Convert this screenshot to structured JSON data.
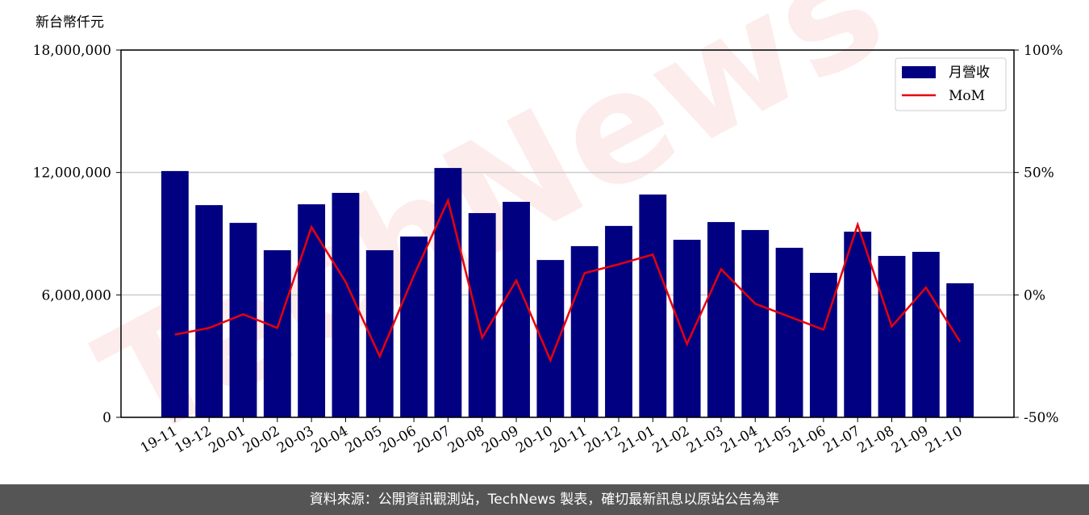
{
  "chart_data": {
    "type": "bar_line",
    "y_label": "新台幣仟元",
    "categories": [
      "19-11",
      "19-12",
      "20-01",
      "20-02",
      "20-03",
      "20-04",
      "20-05",
      "20-06",
      "20-07",
      "20-08",
      "20-09",
      "20-10",
      "20-11",
      "20-12",
      "21-01",
      "21-02",
      "21-03",
      "21-04",
      "21-05",
      "21-06",
      "21-07",
      "21-08",
      "21-09",
      "21-10"
    ],
    "series": [
      {
        "name": "月營收",
        "type": "bar",
        "color": "#000080",
        "values": [
          12070000,
          10400000,
          9530000,
          8190000,
          10440000,
          11000000,
          8190000,
          8860000,
          12220000,
          10010000,
          10560000,
          7710000,
          8390000,
          9380000,
          10920000,
          8700000,
          9570000,
          9180000,
          8310000,
          7080000,
          9100000,
          7910000,
          8110000,
          6570000
        ]
      },
      {
        "name": "MoM",
        "type": "line",
        "color": "#e8000b",
        "axis": "y2",
        "values": [
          -16.2,
          -13.5,
          -7.9,
          -13.5,
          27.7,
          5.3,
          -25.1,
          7.9,
          38.6,
          -17.5,
          5.9,
          -26.7,
          8.9,
          12.5,
          16.5,
          -20.1,
          10.5,
          -3.6,
          -8.9,
          -14.2,
          28.7,
          -12.9,
          3.0,
          -19.1
        ]
      }
    ],
    "ylim": [
      0,
      18000000
    ],
    "yticks": [
      0,
      {
        "value": 6000000,
        "label": "6,000,000"
      },
      {
        "value": 12000000,
        "label": "12,000,000"
      },
      {
        "value": 18000000,
        "label": "18,000,000"
      }
    ],
    "y2lim": [
      -50,
      100
    ],
    "y2ticks": [
      {
        "value": -50,
        "label": "-50%"
      },
      {
        "value": 0,
        "label": "0%"
      },
      {
        "value": 50,
        "label": "50%"
      },
      {
        "value": 100,
        "label": "100%"
      }
    ],
    "grid": true,
    "legend": "upper right",
    "watermark": "TechNews",
    "footer": "資料來源：公開資訊觀測站，TechNews 製表，確切最新訊息以原站公告為準"
  }
}
